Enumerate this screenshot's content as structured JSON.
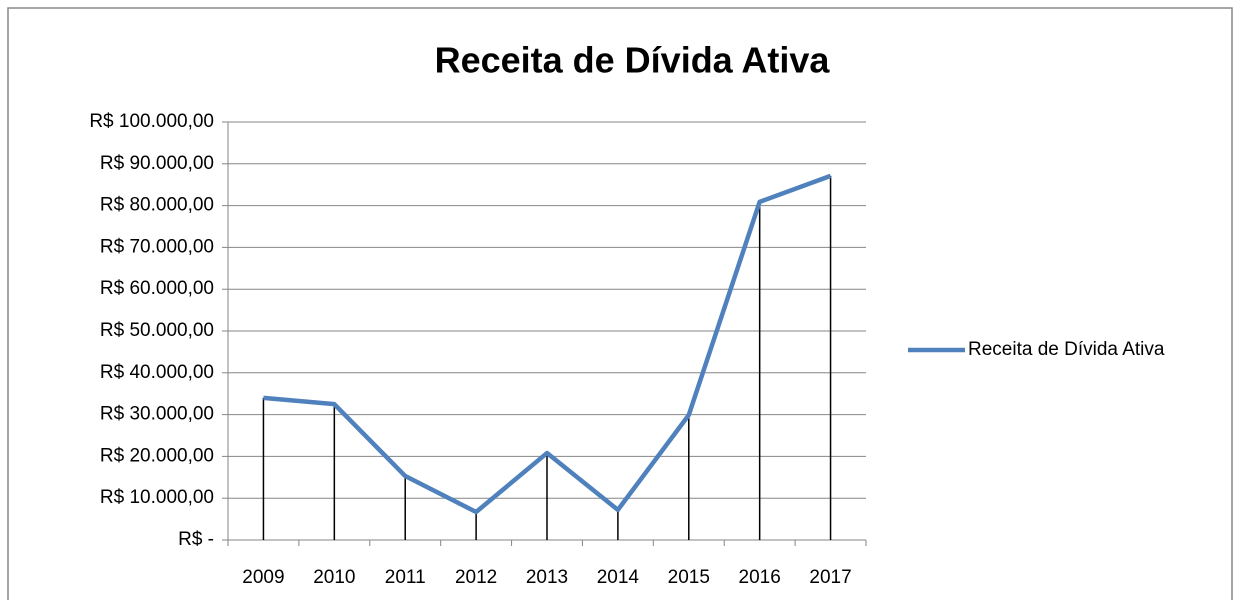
{
  "chart_data": {
    "type": "line",
    "title": "Receita de Dívida Ativa",
    "categories": [
      "2009",
      "2010",
      "2011",
      "2012",
      "2013",
      "2014",
      "2015",
      "2016",
      "2017"
    ],
    "series": [
      {
        "name": "Receita de Dívida Ativa",
        "color": "#4f81bd",
        "values": [
          34000,
          32500,
          15300,
          6700,
          20800,
          7200,
          29900,
          80900,
          87100
        ]
      }
    ],
    "ylim": [
      0,
      100000
    ],
    "yticks": [
      {
        "value": 0,
        "label": "R$ -"
      },
      {
        "value": 10000,
        "label": "R$ 10.000,00"
      },
      {
        "value": 20000,
        "label": "R$ 20.000,00"
      },
      {
        "value": 30000,
        "label": "R$ 30.000,00"
      },
      {
        "value": 40000,
        "label": "R$ 40.000,00"
      },
      {
        "value": 50000,
        "label": "R$ 50.000,00"
      },
      {
        "value": 60000,
        "label": "R$ 60.000,00"
      },
      {
        "value": 70000,
        "label": "R$ 70.000,00"
      },
      {
        "value": 80000,
        "label": "R$ 80.000,00"
      },
      {
        "value": 90000,
        "label": "R$ 90.000,00"
      },
      {
        "value": 100000,
        "label": "R$ 100.000,00"
      }
    ],
    "grid": true,
    "drop_lines": true,
    "legend": "right"
  }
}
